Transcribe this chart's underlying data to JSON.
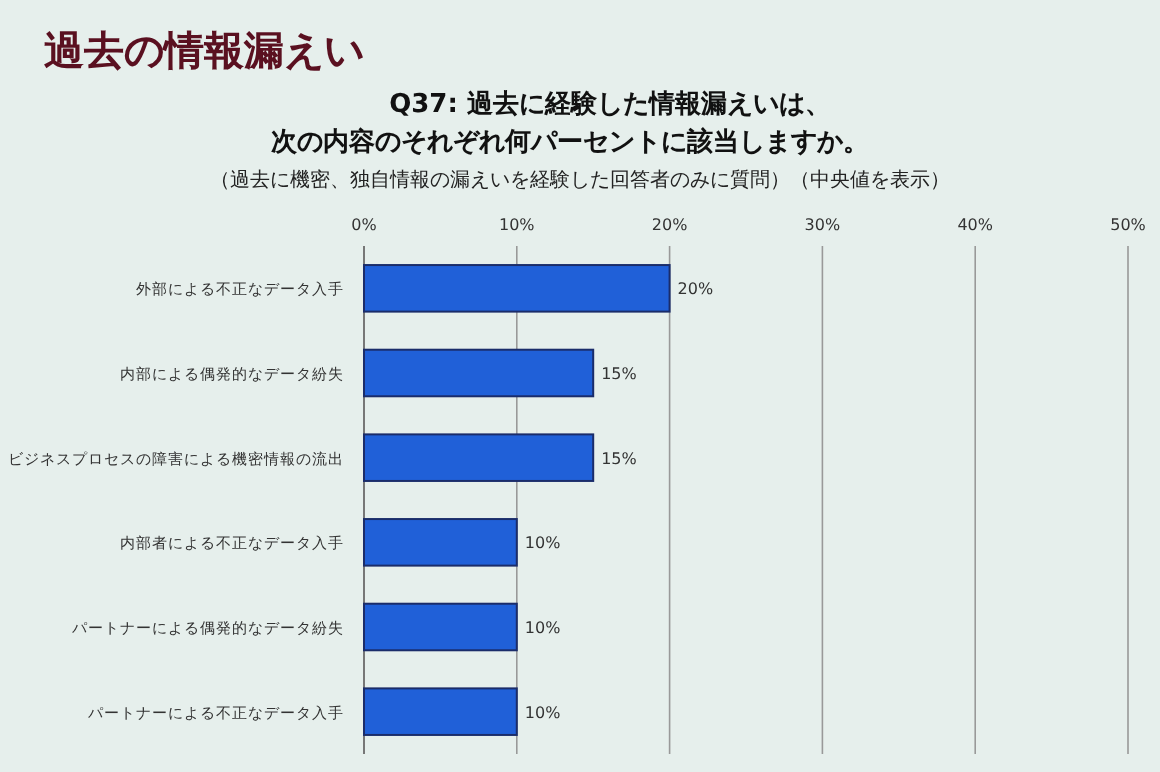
{
  "chart_data": {
    "type": "bar",
    "orientation": "horizontal",
    "title": "過去の情報漏えい",
    "subtitle": "Q37: 過去に経験した情報漏えいは、次の内容のそれぞれ何パーセントに該当しますか。",
    "annotations": [
      "（過去に機密、独自情報の漏えいを経験した回答者のみに質問）（中央値を表示）"
    ],
    "categories": [
      "外部による不正なデータ入手",
      "内部による偶発的なデータ紛失",
      "ビジネスプロセスの障害による機密情報の流出",
      "内部者による不正なデータ入手",
      "パートナーによる偶発的なデータ紛失",
      "パートナーによる不正なデータ入手"
    ],
    "values": [
      20,
      15,
      15,
      10,
      10,
      10
    ],
    "value_labels": [
      "20%",
      "15%",
      "15%",
      "10%",
      "10%",
      "10%"
    ],
    "color": "#2060d8",
    "xlim": [
      0,
      50
    ],
    "xticks": [
      {
        "value": 0,
        "label": "0%"
      },
      {
        "value": 10,
        "label": "10%"
      },
      {
        "value": 20,
        "label": "20%"
      },
      {
        "value": 30,
        "label": "30%"
      },
      {
        "value": 40,
        "label": "40%"
      },
      {
        "value": 50,
        "label": "50%"
      }
    ],
    "grid": "x"
  }
}
